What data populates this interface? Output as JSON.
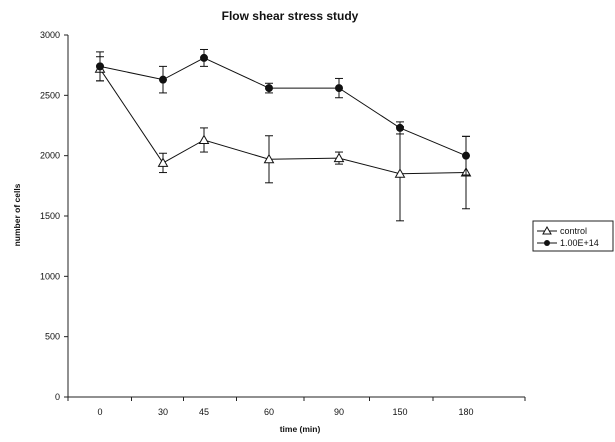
{
  "chart_data": {
    "type": "line",
    "title": "Flow shear stress study",
    "xlabel": "time (min)",
    "ylabel": "number of cells",
    "categories": [
      "0",
      "30",
      "45",
      "60",
      "90",
      "150",
      "180"
    ],
    "ylim": [
      0,
      3000
    ],
    "yticks": [
      0,
      500,
      1000,
      1500,
      2000,
      2500,
      3000
    ],
    "ytick_labels": [
      "0",
      "500",
      "1000",
      "1500",
      "2000",
      "2500",
      "3000"
    ],
    "grid": false,
    "legend_position": "right",
    "series": [
      {
        "name": "control",
        "marker": "open-triangle",
        "values": [
          2720,
          1940,
          2130,
          1970,
          1980,
          1850,
          1860
        ],
        "error": [
          100,
          80,
          100,
          195,
          50,
          390,
          300
        ]
      },
      {
        "name": "1.00E+14",
        "marker": "filled-circle",
        "values": [
          2740,
          2630,
          2810,
          2560,
          2560,
          2230,
          2000
        ],
        "error": [
          120,
          110,
          70,
          40,
          80,
          50,
          160
        ]
      }
    ]
  }
}
